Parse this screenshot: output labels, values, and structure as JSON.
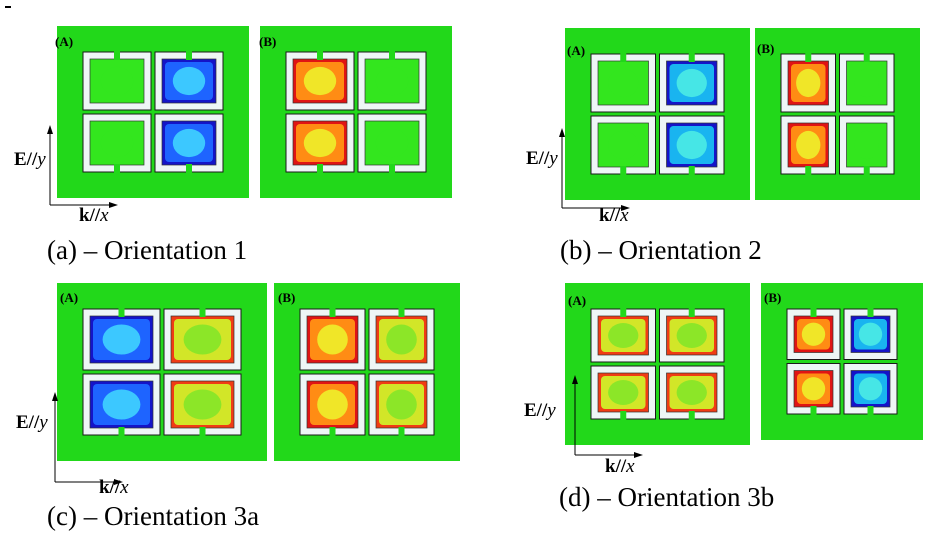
{
  "figures": [
    {
      "caption": "(a) – Orientation 1",
      "field_label": [
        "E//",
        "y"
      ],
      "wave_label": [
        "k//",
        "x"
      ],
      "panels": [
        {
          "label": "(A)",
          "cells": [
            {
              "fill": "green",
              "rim": "gray"
            },
            {
              "fill": "blue",
              "rim": "blue"
            },
            {
              "fill": "green",
              "rim": "mix"
            },
            {
              "fill": "blue",
              "rim": "blue"
            }
          ]
        },
        {
          "label": "(B)",
          "cells": [
            {
              "fill": "red",
              "rim": "red"
            },
            {
              "fill": "green",
              "rim": "gray"
            },
            {
              "fill": "red",
              "rim": "red"
            },
            {
              "fill": "green",
              "rim": "gray"
            }
          ]
        }
      ]
    },
    {
      "caption": "(b) – Orientation 2",
      "field_label": [
        "E//",
        "y"
      ],
      "wave_label": [
        "k//",
        "x"
      ],
      "panels": [
        {
          "label": "(A)",
          "cells": [
            {
              "fill": "green",
              "rim": "blue"
            },
            {
              "fill": "cyan",
              "rim": "blue"
            },
            {
              "fill": "green",
              "rim": "blue"
            },
            {
              "fill": "cyan",
              "rim": "blue"
            }
          ]
        },
        {
          "label": "(B)",
          "cells": [
            {
              "fill": "red",
              "rim": "red"
            },
            {
              "fill": "green",
              "rim": "gray"
            },
            {
              "fill": "red",
              "rim": "red"
            },
            {
              "fill": "green",
              "rim": "gray"
            }
          ]
        }
      ]
    },
    {
      "caption": "(c) – Orientation 3a",
      "field_label": [
        "E//",
        "y"
      ],
      "wave_label": [
        "k//",
        "x"
      ],
      "panels": [
        {
          "label": "(A)",
          "cells": [
            {
              "fill": "blue",
              "rim": "blue"
            },
            {
              "fill": "yellow",
              "rim": "red"
            },
            {
              "fill": "blue",
              "rim": "blue"
            },
            {
              "fill": "yellow",
              "rim": "red"
            }
          ]
        },
        {
          "label": "(B)",
          "cells": [
            {
              "fill": "red",
              "rim": "red"
            },
            {
              "fill": "yellow",
              "rim": "red"
            },
            {
              "fill": "red",
              "rim": "red"
            },
            {
              "fill": "yellow",
              "rim": "red"
            }
          ]
        }
      ]
    },
    {
      "caption": "(d) – Orientation 3b",
      "field_label": [
        "E//",
        "y"
      ],
      "wave_label": [
        "k//",
        "x"
      ],
      "panels": [
        {
          "label": "(A)",
          "cells": [
            {
              "fill": "yellow",
              "rim": "red"
            },
            {
              "fill": "yellow",
              "rim": "red"
            },
            {
              "fill": "yellow",
              "rim": "red"
            },
            {
              "fill": "yellow",
              "rim": "red"
            }
          ]
        },
        {
          "label": "(B)",
          "cells": [
            {
              "fill": "red",
              "rim": "red"
            },
            {
              "fill": "cyan",
              "rim": "blue"
            },
            {
              "fill": "red",
              "rim": "red"
            },
            {
              "fill": "cyan",
              "rim": "blue"
            }
          ]
        }
      ]
    }
  ],
  "palette": {
    "background": "#22d81a",
    "cell_green": "#33e61e",
    "blue_rim": "#1414c8",
    "blue_mid": "#1e64ff",
    "blue_core": "#3cc8ff",
    "cyan_mid": "#19b4f0",
    "cyan_core": "#46e6e6",
    "red_rim": "#e01414",
    "red_mid": "#ff8c14",
    "red_core": "#f0e628",
    "yellow_rim": "#f03c14",
    "yellow_mid": "#d2e628",
    "yellow_core": "#8ce628",
    "ring": "#eef6f6",
    "gray_rim": "#8fb4b4"
  }
}
